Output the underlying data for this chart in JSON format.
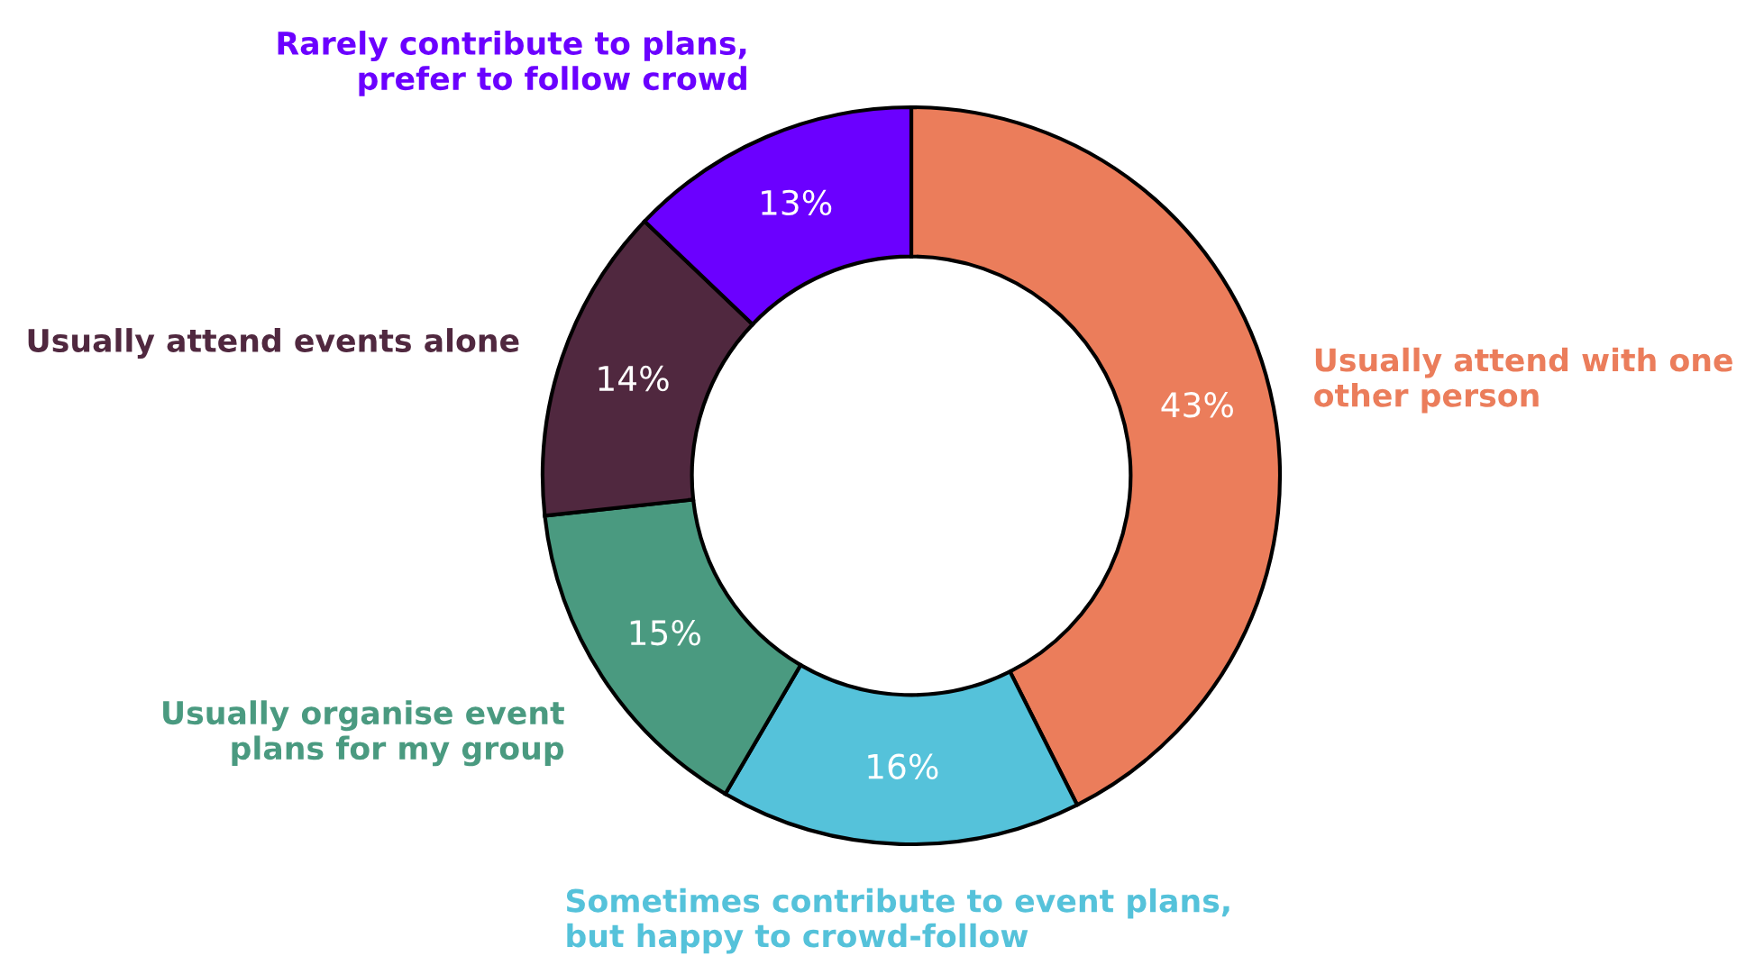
{
  "chart_data": {
    "type": "donut",
    "categories": [
      "Usually attend with one\nother person",
      "Sometimes contribute to event plans,\nbut happy to crowd-follow",
      "Usually organise event\nplans for my group",
      "Usually attend events alone",
      "Rarely contribute to plans,\nprefer to follow crowd"
    ],
    "values": [
      43,
      16,
      15,
      14,
      13
    ],
    "colors": [
      "#eb7d5b",
      "#55c2da",
      "#4a9a80",
      "#50283f",
      "#6b00ff"
    ],
    "value_labels": [
      "43%",
      "16%",
      "15%",
      "14%",
      "13%"
    ]
  }
}
